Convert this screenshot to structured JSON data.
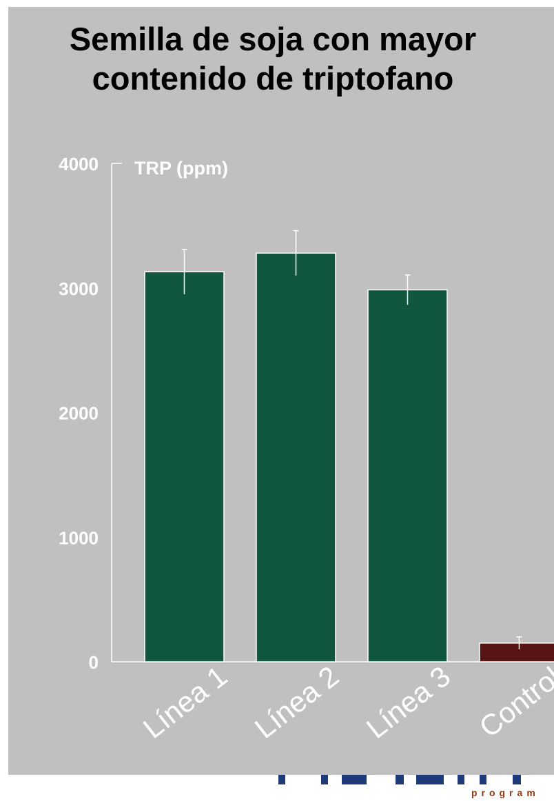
{
  "chart_data": {
    "type": "bar",
    "title_lines": [
      "Semilla de soja con mayor",
      "contenido de triptofano"
    ],
    "ylabel": "TRP (ppm)",
    "xlabel": "",
    "ylim": [
      0,
      4000
    ],
    "yticks": [
      0,
      1000,
      2000,
      3000,
      4000
    ],
    "grid": false,
    "categories": [
      "Línea 1",
      "Línea 2",
      "Línea 3",
      "Control"
    ],
    "values": [
      3130,
      3280,
      2985,
      150
    ],
    "errors": [
      180,
      180,
      120,
      50
    ],
    "colors": [
      "#115740",
      "#115740",
      "#115740",
      "#561414"
    ]
  },
  "colors": {
    "background": "#c0c0c0",
    "bar_primary": "#115740",
    "bar_control": "#561414",
    "text": "#ffffff",
    "title": "#000000"
  },
  "footer": {
    "program_text": "program"
  }
}
